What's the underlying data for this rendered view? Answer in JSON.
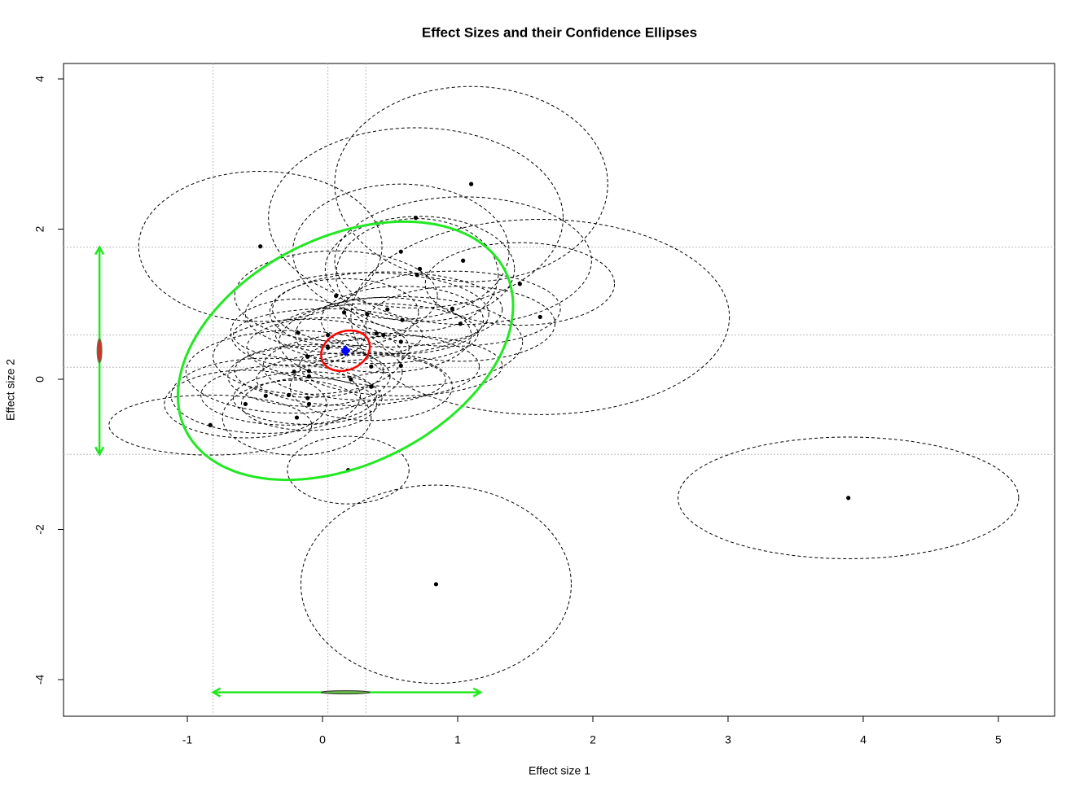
{
  "chart_data": {
    "type": "scatter",
    "title": "Effect Sizes and their Confidence Ellipses",
    "xlabel": "Effect size 1",
    "ylabel": "Effect size 2",
    "xlim": [
      -1.916,
      5.416
    ],
    "ylim": [
      -4.488,
      4.206
    ],
    "xticks": [
      -1,
      0,
      1,
      2,
      3,
      4,
      5
    ],
    "yticks": [
      -4,
      -2,
      0,
      2,
      4
    ],
    "ref_x": [
      -0.81,
      0.04,
      0.32
    ],
    "ref_y": [
      1.76,
      0.59,
      0.16,
      -1.0
    ],
    "studies": {
      "color": "#000000",
      "x": [
        1.1,
        0.69,
        -0.46,
        0.58,
        1.04,
        0.72,
        0.7,
        1.46,
        0.1,
        0.96,
        1.61,
        0.16,
        0.33,
        0.48,
        1.02,
        0.59,
        0.4,
        -0.18,
        0.04,
        0.45,
        0.58,
        -0.11,
        0.04,
        0.36,
        0.58,
        -0.21,
        -0.1,
        0.21,
        0.36,
        -0.1,
        -0.42,
        -0.25,
        -0.11,
        -0.57,
        -0.1,
        -0.19,
        -0.83,
        0.19,
        0.84,
        3.89
      ],
      "y": [
        2.6,
        2.15,
        1.77,
        1.7,
        1.58,
        1.47,
        1.39,
        1.27,
        1.11,
        0.94,
        0.83,
        0.89,
        0.87,
        0.93,
        0.74,
        0.79,
        0.61,
        0.62,
        0.59,
        0.59,
        0.5,
        0.3,
        0.42,
        0.17,
        0.18,
        0.1,
        0.11,
        0.0,
        -0.1,
        0.04,
        -0.22,
        -0.21,
        -0.25,
        -0.33,
        -0.33,
        -0.51,
        -0.61,
        -1.21,
        -2.73,
        -1.58
      ],
      "ex": [
        1.01,
        1.09,
        0.9,
        0.8,
        0.95,
        0.7,
        0.6,
        0.7,
        0.75,
        0.8,
        1.4,
        0.55,
        0.9,
        0.85,
        0.7,
        0.6,
        0.75,
        0.5,
        0.7,
        0.65,
        0.9,
        0.7,
        0.6,
        0.8,
        0.75,
        0.8,
        0.55,
        0.7,
        0.6,
        0.6,
        0.7,
        0.65,
        0.55,
        0.6,
        0.5,
        0.55,
        0.75,
        0.45,
        1.0,
        1.26
      ],
      "ey": [
        1.3,
        1.2,
        1.0,
        0.9,
        0.85,
        0.7,
        0.75,
        0.55,
        0.6,
        0.5,
        1.3,
        0.45,
        0.55,
        0.5,
        0.5,
        0.45,
        0.4,
        0.45,
        0.35,
        0.5,
        0.6,
        0.5,
        0.4,
        0.45,
        0.4,
        0.55,
        0.35,
        0.35,
        0.45,
        0.4,
        0.5,
        0.4,
        0.35,
        0.45,
        0.35,
        0.5,
        0.4,
        0.45,
        1.32,
        0.81
      ]
    },
    "summary": {
      "x": 0.17,
      "y": 0.38,
      "color": "#0000ff"
    },
    "confidence": {
      "ex": 0.18,
      "ey": 0.27,
      "rho": 0.2,
      "color": "#ff0000"
    },
    "prediction": {
      "ex": 1.24,
      "ey": 1.72,
      "rho": 0.35,
      "color": "#22e822",
      "x_range": [
        -0.81,
        1.17
      ],
      "x_at": -4.17,
      "y_range": [
        -1.0,
        1.76
      ],
      "y_at": -1.65
    }
  }
}
